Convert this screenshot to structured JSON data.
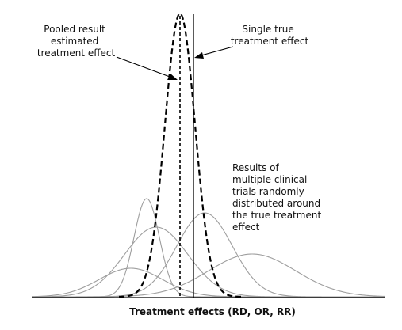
{
  "figure": {
    "axis_label": "Treatment effects (RD, OR, RR)",
    "labels": {
      "pooled": [
        "Pooled result",
        "estimated",
        "treatment effect"
      ],
      "true_effect": [
        "Single true",
        "treatment effect"
      ],
      "trials": [
        "Results of",
        "multiple clinical",
        "trials randomly",
        "distributed around",
        "the true treatment",
        "effect"
      ]
    },
    "colors": {
      "pooled_curve": "#000000",
      "trial_curves": "#9e9e9e",
      "true_line": "#000000",
      "axis": "#000000"
    }
  }
}
